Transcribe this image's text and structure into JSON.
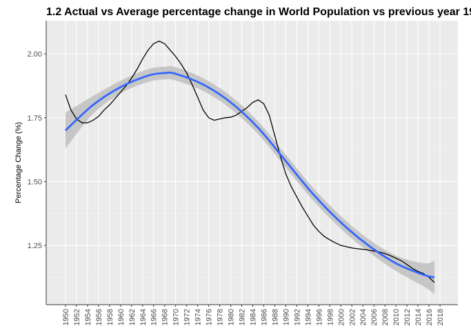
{
  "chart_data": {
    "type": "line",
    "title": "1.2 Actual vs Average percentage change in World Population vs previous year 19",
    "y_label": "Percentage Change (%)",
    "xlim": [
      1946.5,
      2021.25
    ],
    "ylim": [
      1.018,
      2.13
    ],
    "xticks": [
      1950,
      1952,
      1954,
      1956,
      1958,
      1960,
      1962,
      1964,
      1966,
      1968,
      1970,
      1972,
      1974,
      1976,
      1978,
      1980,
      1982,
      1984,
      1986,
      1988,
      1990,
      1992,
      1994,
      1996,
      1998,
      2000,
      2002,
      2004,
      2006,
      2008,
      2010,
      2012,
      2014,
      2016,
      2018
    ],
    "yticks": [
      {
        "value": 1.25,
        "label": "1.25"
      },
      {
        "value": 1.5,
        "label": "1.50"
      },
      {
        "value": 1.75,
        "label": "1.75"
      },
      {
        "value": 2,
        "label": "2.00"
      }
    ],
    "grid": true,
    "series": [
      {
        "color": "#000000",
        "x": [
          1950,
          1951,
          1952,
          1953,
          1954,
          1955,
          1956,
          1957,
          1958,
          1959,
          1960,
          1961,
          1962,
          1963,
          1964,
          1965,
          1966,
          1967,
          1968,
          1969,
          1970,
          1971,
          1972,
          1973,
          1974,
          1975,
          1976,
          1977,
          1978,
          1979,
          1980,
          1981,
          1982,
          1983,
          1984,
          1985,
          1986,
          1987,
          1988,
          1989,
          1990,
          1991,
          1992,
          1993,
          1994,
          1995,
          1996,
          1997,
          1998,
          1999,
          2000,
          2001,
          2002,
          2003,
          2004,
          2005,
          2006,
          2007,
          2008,
          2009,
          2010,
          2011,
          2012,
          2013,
          2014,
          2015,
          2016,
          2017
        ],
        "values": [
          1.84,
          1.78,
          1.745,
          1.73,
          1.73,
          1.74,
          1.755,
          1.78,
          1.8,
          1.825,
          1.85,
          1.875,
          1.905,
          1.94,
          1.98,
          2.015,
          2.04,
          2.05,
          2.04,
          2.015,
          1.99,
          1.96,
          1.925,
          1.88,
          1.83,
          1.78,
          1.75,
          1.74,
          1.745,
          1.75,
          1.752,
          1.76,
          1.775,
          1.79,
          1.81,
          1.82,
          1.805,
          1.76,
          1.68,
          1.6,
          1.53,
          1.48,
          1.44,
          1.4,
          1.365,
          1.33,
          1.305,
          1.285,
          1.272,
          1.26,
          1.25,
          1.245,
          1.24,
          1.237,
          1.235,
          1.232,
          1.228,
          1.224,
          1.218,
          1.21,
          1.2,
          1.19,
          1.175,
          1.16,
          1.148,
          1.14,
          1.125,
          1.105
        ]
      },
      {
        "color": "#3366FF",
        "band_color": "#bfbfbf",
        "x": [
          1950,
          1955,
          1960,
          1965,
          1968,
          1970,
          1975,
          1980,
          1985,
          1990,
          1995,
          2000,
          2005,
          2010,
          2015,
          2017
        ],
        "values": [
          1.7,
          1.8,
          1.87,
          1.915,
          1.925,
          1.922,
          1.88,
          1.81,
          1.71,
          1.58,
          1.45,
          1.34,
          1.25,
          1.18,
          1.135,
          1.125
        ],
        "upper": [
          1.77,
          1.835,
          1.895,
          1.94,
          1.95,
          1.948,
          1.905,
          1.835,
          1.735,
          1.605,
          1.475,
          1.365,
          1.275,
          1.21,
          1.18,
          1.19
        ],
        "lower": [
          1.63,
          1.765,
          1.845,
          1.89,
          1.9,
          1.896,
          1.855,
          1.785,
          1.685,
          1.555,
          1.425,
          1.315,
          1.225,
          1.15,
          1.09,
          1.06
        ]
      }
    ]
  }
}
